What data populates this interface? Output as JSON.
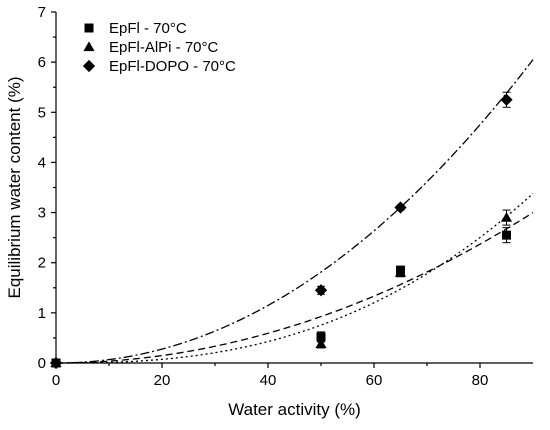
{
  "chart_data": {
    "type": "scatter",
    "xlabel": "Water activity (%)",
    "ylabel": "Equilibrium water content (%)",
    "xlim": [
      0,
      90
    ],
    "ylim": [
      0,
      7
    ],
    "xticks": [
      0,
      20,
      40,
      60,
      80
    ],
    "yticks": [
      0,
      1,
      2,
      3,
      4,
      5,
      6,
      7
    ],
    "legend_position": "top-left",
    "grid": false,
    "series": [
      {
        "name": "EpFl - 70°C",
        "marker": "square",
        "points": [
          {
            "x": 0,
            "y": 0.0,
            "err": 0.0
          },
          {
            "x": 50,
            "y": 0.52,
            "err": 0.1
          },
          {
            "x": 65,
            "y": 1.85,
            "err": 0.08
          },
          {
            "x": 85,
            "y": 2.55,
            "err": 0.15
          }
        ],
        "fit": {
          "style": "dashed",
          "exponent": 2,
          "y_at_90": 3.0
        }
      },
      {
        "name": "EpFl-AlPi - 70°C",
        "marker": "triangle",
        "points": [
          {
            "x": 0,
            "y": 0.0,
            "err": 0.0
          },
          {
            "x": 50,
            "y": 0.38,
            "err": 0.08
          },
          {
            "x": 65,
            "y": 1.8,
            "err": 0.08
          },
          {
            "x": 85,
            "y": 2.9,
            "err": 0.15
          }
        ],
        "fit": {
          "style": "dotted",
          "exponent": 2.55,
          "y_at_90": 3.38
        }
      },
      {
        "name": "EpFl-DOPO - 70°C",
        "marker": "diamond",
        "points": [
          {
            "x": 0,
            "y": 0.0,
            "err": 0.0
          },
          {
            "x": 50,
            "y": 1.45,
            "err": 0.08
          },
          {
            "x": 65,
            "y": 3.1,
            "err": 0.05
          },
          {
            "x": 85,
            "y": 5.25,
            "err": 0.15
          }
        ],
        "fit": {
          "style": "dash-dot",
          "exponent": 2.05,
          "y_at_90": 6.05
        }
      }
    ]
  }
}
